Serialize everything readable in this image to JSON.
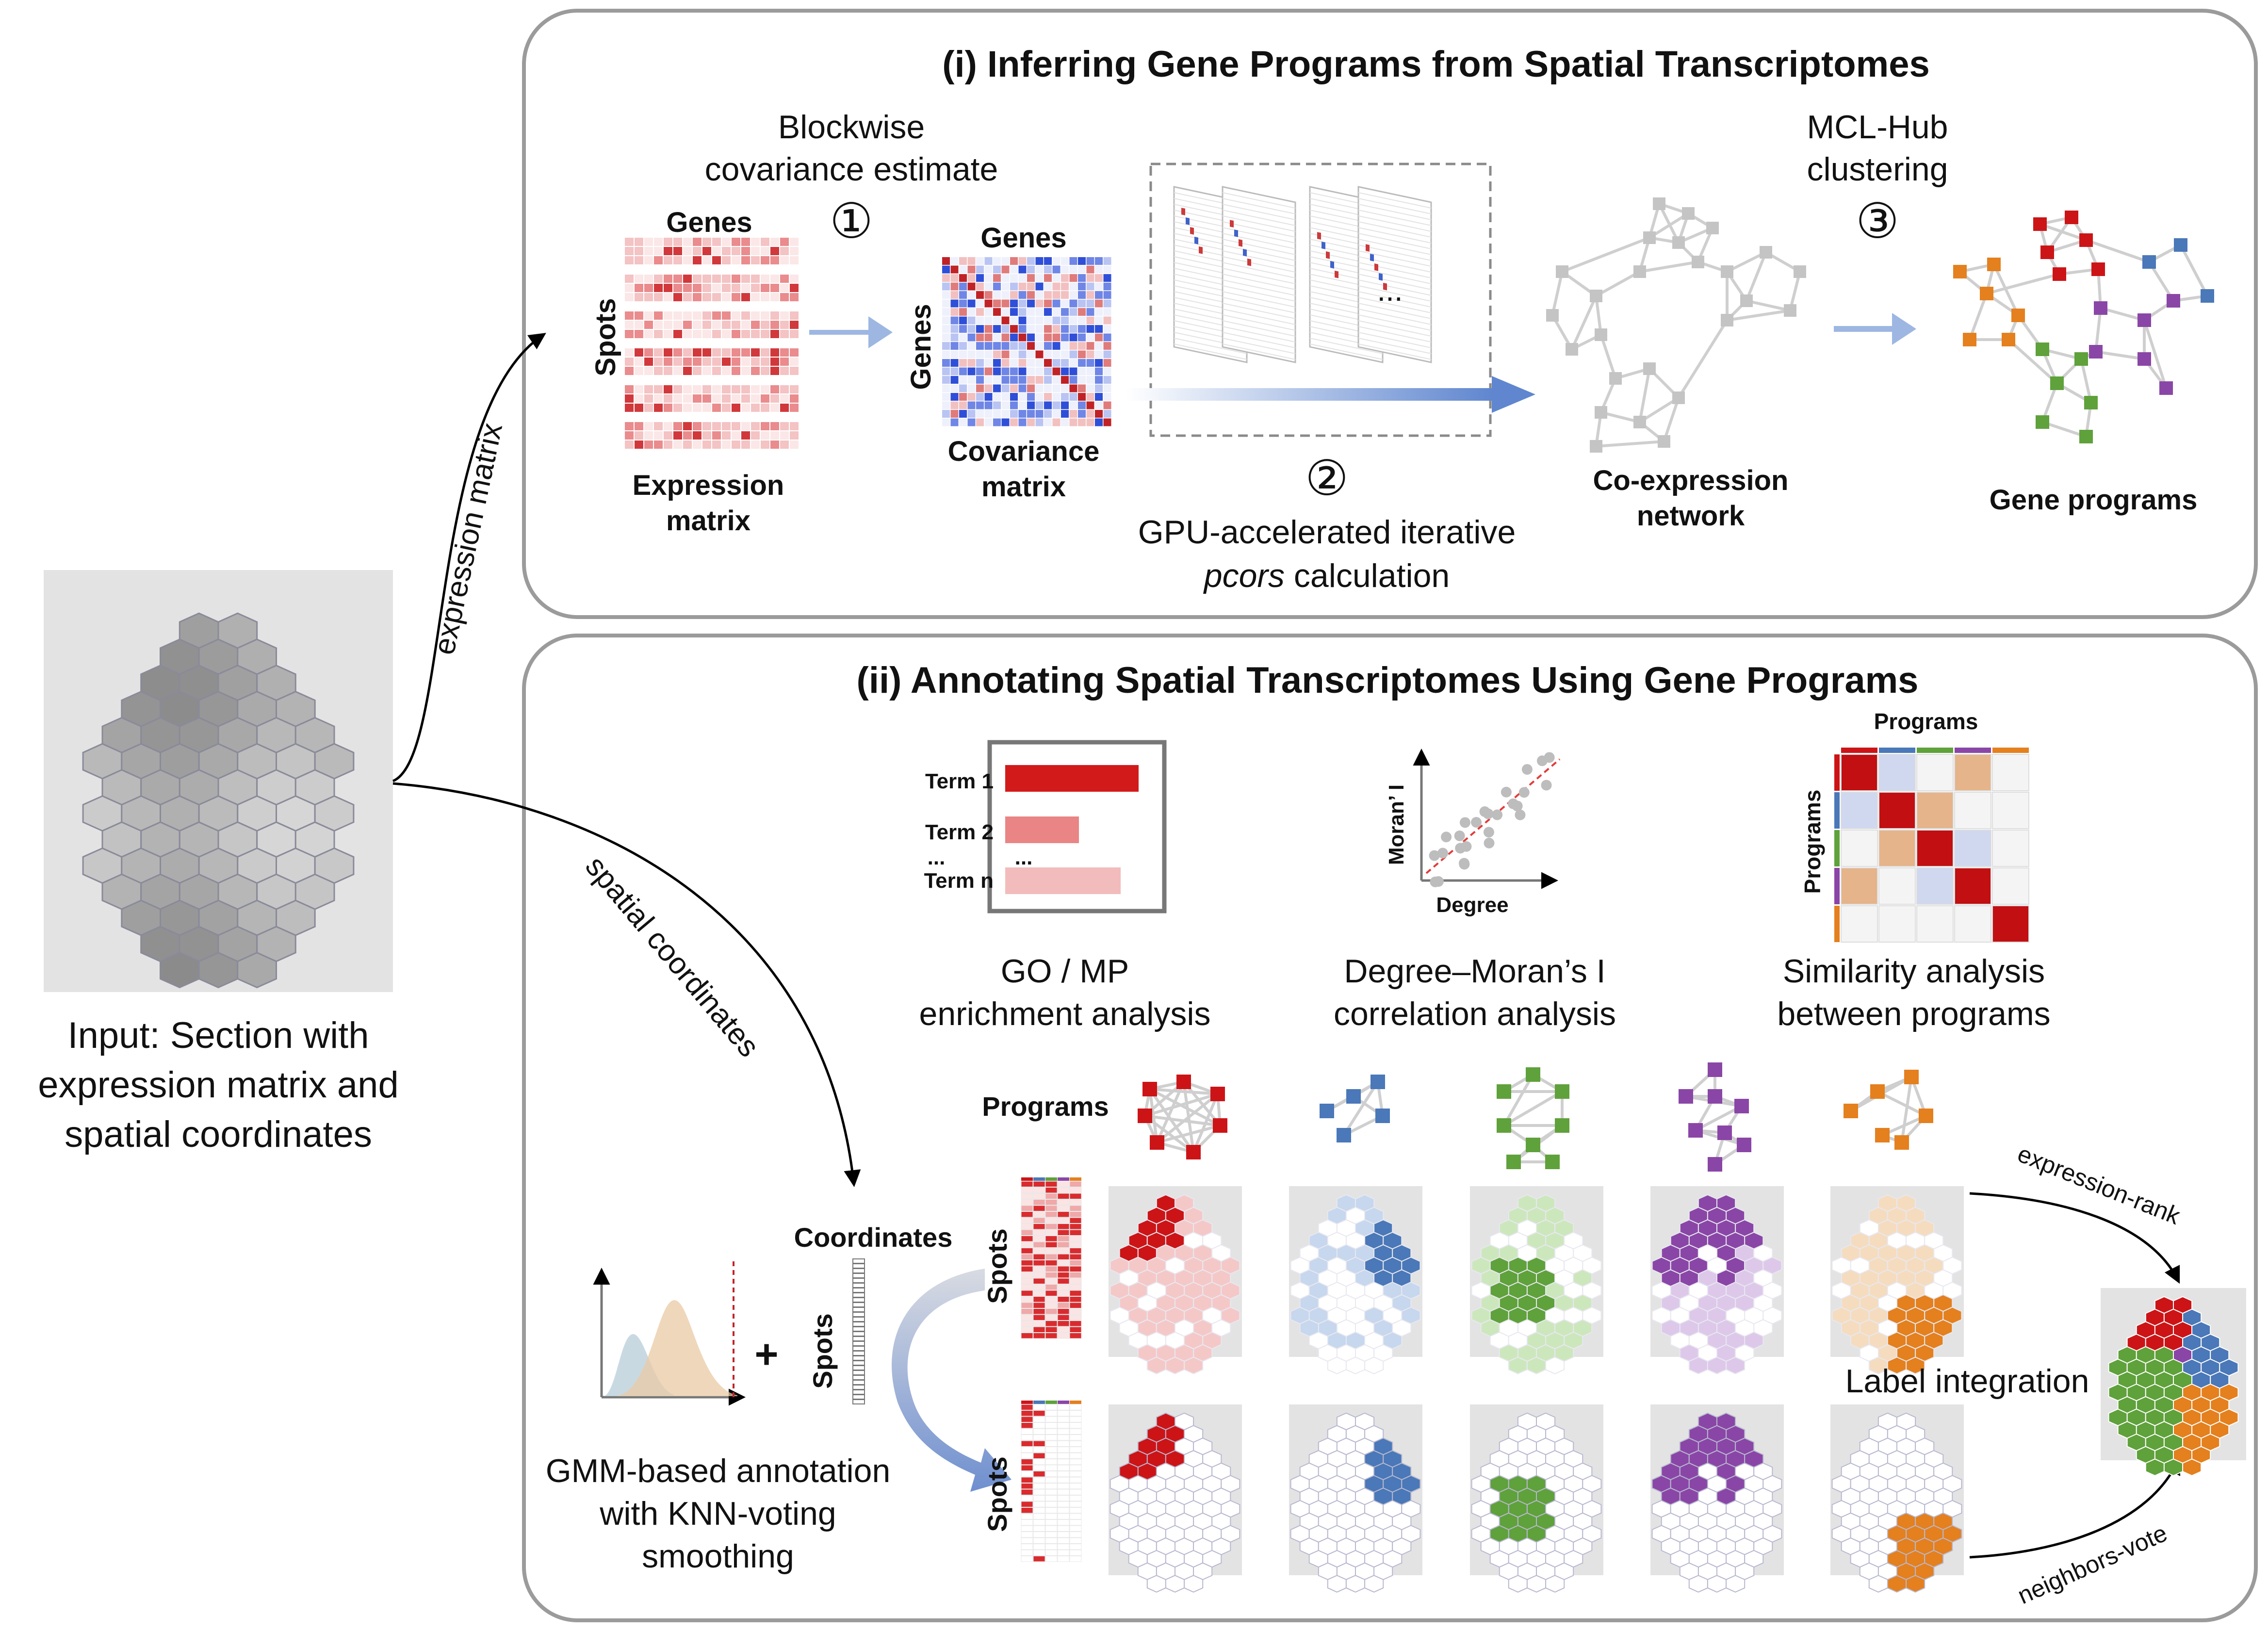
{
  "panel_i": {
    "title": "(i) Inferring Gene Programs from Spatial Transcriptomes",
    "step1_line1": "Blockwise",
    "step1_line2": "covariance estimate",
    "step1_num": "①",
    "step2_num": "②",
    "step2_line1": "GPU-accelerated iterative",
    "step2_italic": "pcors",
    "step2_rest": " calculation",
    "step3_line1": "MCL-Hub",
    "step3_line2": "clustering",
    "step3_num": "③",
    "expr_genes": "Genes",
    "expr_spots": "Spots",
    "expr_label1": "Expression",
    "expr_label2": "matrix",
    "cov_genes_top": "Genes",
    "cov_genes_side": "Genes",
    "cov_label1": "Covariance",
    "cov_label2": "matrix",
    "ellipsis": "...",
    "net_label1": "Co-expression",
    "net_label2": "network",
    "programs_label": "Gene programs"
  },
  "panel_ii": {
    "title": "(ii) Annotating Spatial Transcriptomes Using Gene Programs",
    "go_terms": [
      "Term 1",
      "Term 2",
      "Term n"
    ],
    "go_dots": "...",
    "go_label1": "GO / MP",
    "go_label2": "enrichment analysis",
    "moran_ylabel": "Moran’ I",
    "moran_xlabel": "Degree",
    "moran_label1": "Degree–Moran’s I",
    "moran_label2": "correlation analysis",
    "sim_top": "Programs",
    "sim_side": "Programs",
    "sim_label1": "Similarity analysis",
    "sim_label2": "between programs",
    "programs_row": "Programs",
    "coordinates": "Coordinates",
    "spots": "Spots",
    "plus": "+",
    "gmm_label1": "GMM-based annotation",
    "gmm_label2": "with KNN-voting",
    "gmm_label3": "smoothing",
    "spots_row1": "Spots",
    "spots_row2": "Spots",
    "label_integration": "Label integration",
    "expression_rank": "expression-rank",
    "neighbors_vote": "neighbors-vote"
  },
  "input": {
    "line1": "Input: Section with",
    "line2": "expression matrix and",
    "line3": "spatial coordinates",
    "arrow_expr": "expression matrix",
    "arrow_spatial": "spatial coordinates"
  },
  "colors": {
    "red": "#cc1417",
    "blue": "#4a78b8",
    "green": "#5fa13b",
    "purple": "#8a46a6",
    "orange": "#e4801e",
    "grey_node": "#c4c4c4",
    "edge": "#cfcfcf",
    "arrow_blue": "#9db7e2"
  }
}
